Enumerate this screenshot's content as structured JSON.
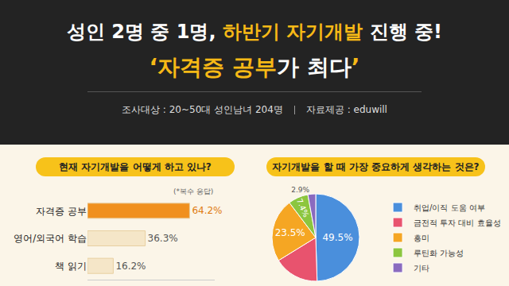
{
  "header": {
    "title_lines": [
      [
        {
          "text": "성인 2명 중 1명, ",
          "highlight": false
        },
        {
          "text": "하반기 자기개발",
          "highlight": true
        },
        {
          "text": " 진행 중!",
          "highlight": false
        }
      ],
      [
        {
          "text": "‘자격증 공부",
          "highlight": true
        },
        {
          "text": "가 최다",
          "highlight": false
        },
        {
          "text": "’",
          "highlight": true
        }
      ]
    ],
    "survey": "조사대상 : 20~50대 성인남녀 204명",
    "source": "자료제공 : eduwill"
  },
  "chart_data": [
    {
      "type": "bar",
      "title": "현재 자기개발을 어떻게 하고 있나?",
      "annotation": "(*복수 응답)",
      "categories": [
        "자격증 공부",
        "영어/외국어 학습",
        "책 읽기"
      ],
      "values": [
        64.2,
        36.3,
        16.2
      ],
      "value_labels": [
        "64.2%",
        "36.3%",
        "16.2%"
      ],
      "data_labels": true,
      "orientation": "horizontal",
      "colors": [
        "#f0901e",
        "#f5e6c8",
        "#f5e6c8"
      ],
      "xlim": [
        0,
        80
      ],
      "tick_labels": "y",
      "grid": false
    },
    {
      "type": "pie",
      "title": "자기개발을 할 때 가장 중요하게 생각하는 것은?",
      "categories": [
        "취업/이직 도움 여부",
        "금전적 투자 대비 효율성",
        "흥미",
        "루틴화 가능성",
        "기타"
      ],
      "values": [
        49.5,
        16.7,
        23.5,
        7.4,
        2.9
      ],
      "value_labels": [
        "49.5%",
        null,
        "23.5%",
        "7.4%",
        "2.9%"
      ],
      "data_labels": true,
      "colors": [
        "#4a8fdc",
        "#e8536e",
        "#f5a623",
        "#8cc63f",
        "#8a6bbf"
      ],
      "legend": "right"
    }
  ]
}
